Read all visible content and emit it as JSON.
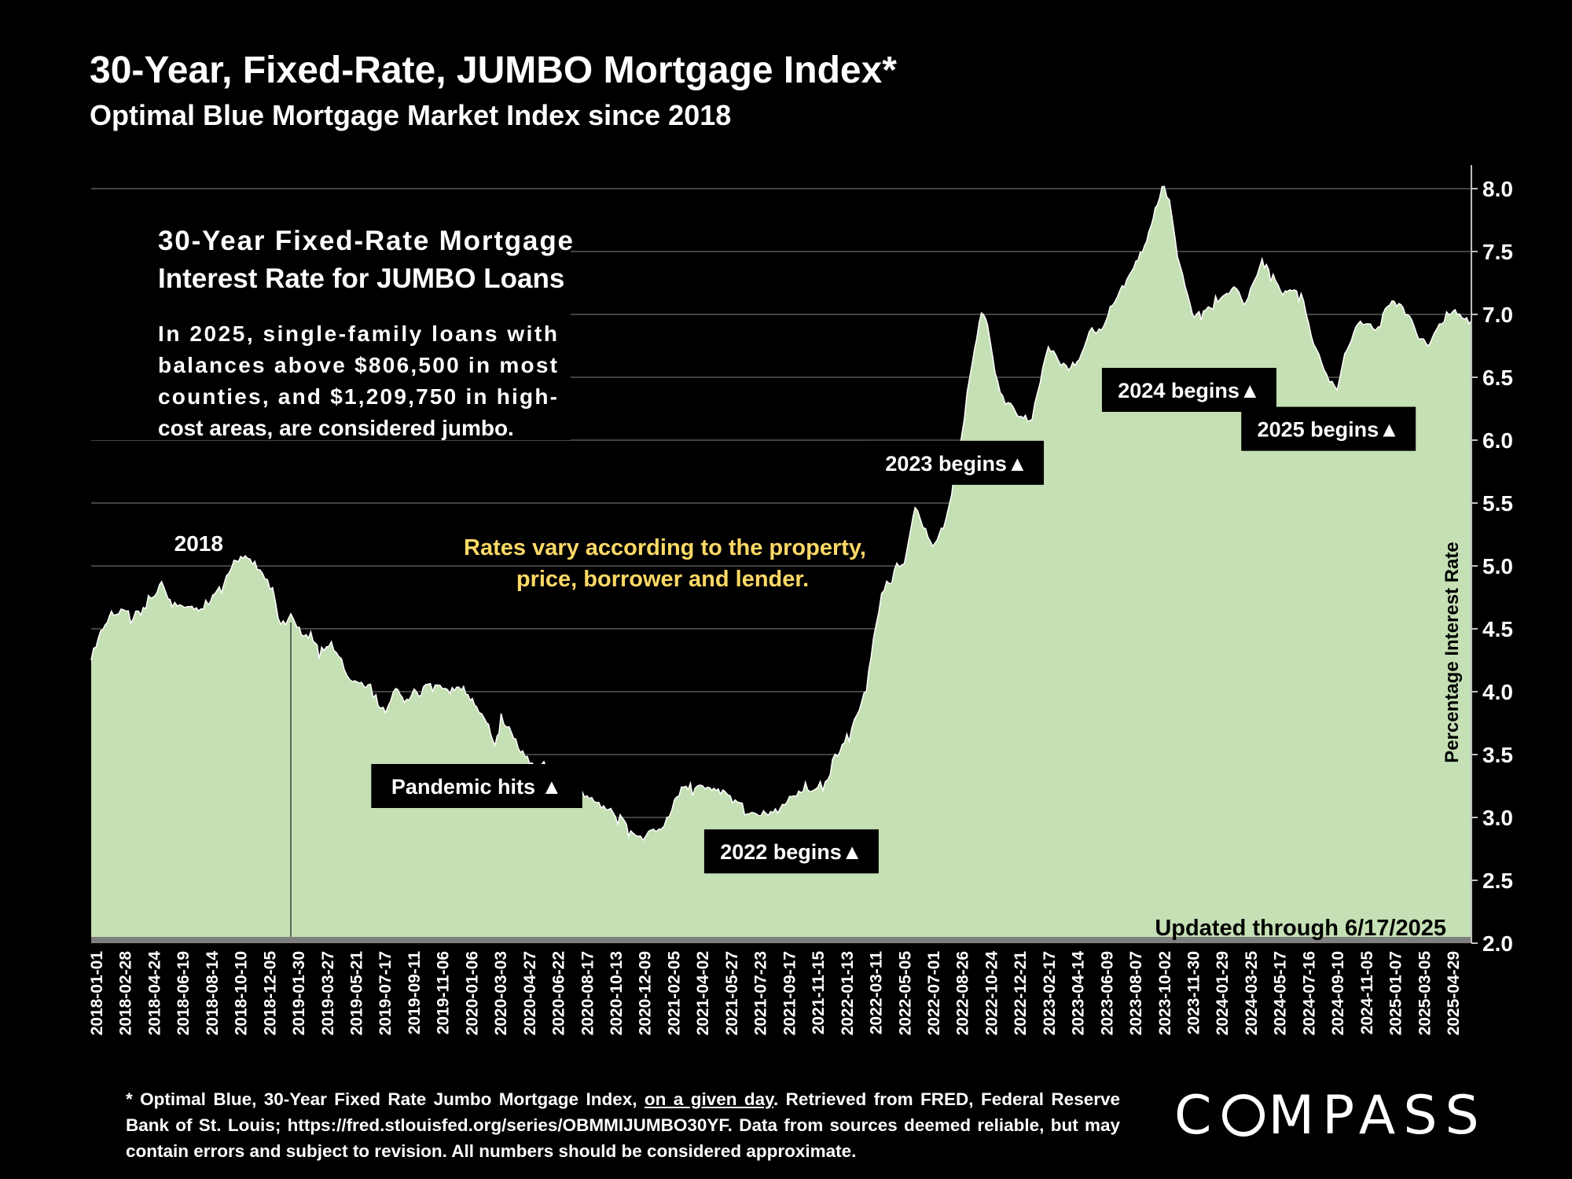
{
  "header": {
    "title": "30-Year, Fixed-Rate, JUMBO Mortgage Index*",
    "subtitle": "Optimal Blue Mortgage Market Index since 2018"
  },
  "info_box": {
    "heading_line1": "30-Year Fixed-Rate Mortgage",
    "heading_line2": "Interest Rate for JUMBO Loans",
    "body_lines": [
      "In 2025, single-family loans with",
      "balances above $806,500 in most",
      "counties, and $1,209,750 in high-",
      "cost areas, are considered jumbo."
    ]
  },
  "note": {
    "line1": "Rates vary according to the property,",
    "line2": "price, borrower and lender."
  },
  "updated": "Updated through 6/17/2025",
  "footnote": {
    "part1": "* Optimal Blue, 30-Year Fixed Rate Jumbo Mortgage Index, ",
    "underlined": "on a given day",
    "part2": ". Retrieved from FRED, Federal Reserve Bank of St. Louis; https://fred.stlouisfed.org/series/OBMMIJUMBO30YF. Data from sources deemed reliable, but may contain errors and subject to revision. All numbers should be considered approximate."
  },
  "logo": {
    "before": "C",
    "after": "MPASS"
  },
  "colors": {
    "background": "#000000",
    "area_fill": "#c5e0b4",
    "note_text": "#ffd966",
    "gridline": "#595959"
  },
  "chart_data": {
    "type": "area",
    "ylabel": "Percentage Interest Rate",
    "ylim": [
      2.0,
      8.2
    ],
    "y_ticks": [
      "2.0",
      "2.5",
      "3.0",
      "3.5",
      "4.0",
      "4.5",
      "5.0",
      "5.5",
      "6.0",
      "6.5",
      "7.0",
      "7.5",
      "8.0"
    ],
    "x_start": "2018-01-01",
    "x_end": "2025-06-17",
    "x_tick_labels": [
      "2018-01-01",
      "2018-02-28",
      "2018-04-24",
      "2018-06-19",
      "2018-08-14",
      "2018-10-10",
      "2018-12-05",
      "2019-01-30",
      "2019-03-27",
      "2019-05-21",
      "2019-07-17",
      "2019-09-11",
      "2019-11-06",
      "2020-01-06",
      "2020-03-03",
      "2020-04-27",
      "2020-06-22",
      "2020-08-17",
      "2020-10-13",
      "2020-12-09",
      "2021-02-05",
      "2021-04-02",
      "2021-05-27",
      "2021-07-23",
      "2021-09-17",
      "2021-11-15",
      "2022-01-13",
      "2022-03-11",
      "2022-05-05",
      "2022-07-01",
      "2022-08-26",
      "2022-10-24",
      "2022-12-21",
      "2023-02-17",
      "2023-04-14",
      "2023-06-09",
      "2023-08-07",
      "2023-10-02",
      "2023-11-30",
      "2024-01-29",
      "2024-03-25",
      "2024-05-17",
      "2024-07-16",
      "2024-09-10",
      "2024-11-05",
      "2025-01-07",
      "2025-03-05",
      "2025-04-29"
    ],
    "series": [
      {
        "points": [
          [
            "2018-01-01",
            4.25
          ],
          [
            "2018-01-20",
            4.45
          ],
          [
            "2018-02-10",
            4.6
          ],
          [
            "2018-03-01",
            4.62
          ],
          [
            "2018-03-25",
            4.58
          ],
          [
            "2018-04-24",
            4.72
          ],
          [
            "2018-05-20",
            4.88
          ],
          [
            "2018-06-10",
            4.72
          ],
          [
            "2018-07-10",
            4.7
          ],
          [
            "2018-08-01",
            4.68
          ],
          [
            "2018-08-20",
            4.72
          ],
          [
            "2018-09-15",
            4.8
          ],
          [
            "2018-10-10",
            5.0
          ],
          [
            "2018-11-01",
            5.05
          ],
          [
            "2018-11-20",
            5.0
          ],
          [
            "2018-12-10",
            4.88
          ],
          [
            "2018-12-25",
            4.78
          ],
          [
            "2019-01-05",
            4.6
          ],
          [
            "2019-01-20",
            4.55
          ],
          [
            "2019-01-30",
            4.62
          ],
          [
            "2019-02-20",
            4.5
          ],
          [
            "2019-03-15",
            4.45
          ],
          [
            "2019-03-27",
            4.3
          ],
          [
            "2019-04-20",
            4.35
          ],
          [
            "2019-05-10",
            4.22
          ],
          [
            "2019-05-21",
            4.1
          ],
          [
            "2019-06-10",
            4.05
          ],
          [
            "2019-07-01",
            4.05
          ],
          [
            "2019-07-17",
            3.95
          ],
          [
            "2019-08-05",
            3.88
          ],
          [
            "2019-08-25",
            4.05
          ],
          [
            "2019-09-11",
            3.95
          ],
          [
            "2019-10-05",
            4.0
          ],
          [
            "2019-11-06",
            4.05
          ],
          [
            "2019-12-10",
            3.98
          ],
          [
            "2020-01-06",
            4.0
          ],
          [
            "2020-02-01",
            3.85
          ],
          [
            "2020-02-20",
            3.75
          ],
          [
            "2020-03-08",
            3.55
          ],
          [
            "2020-03-20",
            3.8
          ],
          [
            "2020-04-05",
            3.75
          ],
          [
            "2020-04-27",
            3.55
          ],
          [
            "2020-05-20",
            3.45
          ],
          [
            "2020-06-22",
            3.38
          ],
          [
            "2020-07-20",
            3.22
          ],
          [
            "2020-08-17",
            3.18
          ],
          [
            "2020-09-15",
            3.12
          ],
          [
            "2020-10-13",
            3.05
          ],
          [
            "2020-11-10",
            2.98
          ],
          [
            "2020-12-01",
            2.88
          ],
          [
            "2020-12-20",
            2.85
          ],
          [
            "2021-01-05",
            2.9
          ],
          [
            "2021-01-25",
            2.92
          ],
          [
            "2021-02-05",
            2.95
          ],
          [
            "2021-02-25",
            3.15
          ],
          [
            "2021-03-20",
            3.25
          ],
          [
            "2021-04-02",
            3.22
          ],
          [
            "2021-05-01",
            3.2
          ],
          [
            "2021-05-27",
            3.18
          ],
          [
            "2021-06-25",
            3.12
          ],
          [
            "2021-07-23",
            3.02
          ],
          [
            "2021-08-20",
            3.05
          ],
          [
            "2021-09-17",
            3.08
          ],
          [
            "2021-10-15",
            3.2
          ],
          [
            "2021-11-15",
            3.25
          ],
          [
            "2021-12-15",
            3.25
          ],
          [
            "2022-01-13",
            3.5
          ],
          [
            "2022-02-05",
            3.65
          ],
          [
            "2022-02-25",
            3.85
          ],
          [
            "2022-03-11",
            4.0
          ],
          [
            "2022-03-25",
            4.4
          ],
          [
            "2022-04-10",
            4.75
          ],
          [
            "2022-05-05",
            4.95
          ],
          [
            "2022-05-25",
            5.05
          ],
          [
            "2022-06-15",
            5.5
          ],
          [
            "2022-07-01",
            5.35
          ],
          [
            "2022-07-20",
            5.2
          ],
          [
            "2022-08-10",
            5.3
          ],
          [
            "2022-08-26",
            5.6
          ],
          [
            "2022-09-15",
            6.0
          ],
          [
            "2022-10-01",
            6.5
          ],
          [
            "2022-10-24",
            7.0
          ],
          [
            "2022-11-05",
            6.9
          ],
          [
            "2022-11-20",
            6.5
          ],
          [
            "2022-12-05",
            6.35
          ],
          [
            "2022-12-21",
            6.3
          ],
          [
            "2023-01-10",
            6.2
          ],
          [
            "2023-02-01",
            6.2
          ],
          [
            "2023-02-17",
            6.5
          ],
          [
            "2023-03-05",
            6.75
          ],
          [
            "2023-03-25",
            6.6
          ],
          [
            "2023-04-14",
            6.55
          ],
          [
            "2023-05-05",
            6.6
          ],
          [
            "2023-05-25",
            6.85
          ],
          [
            "2023-06-09",
            6.85
          ],
          [
            "2023-07-05",
            7.05
          ],
          [
            "2023-08-07",
            7.3
          ],
          [
            "2023-08-25",
            7.45
          ],
          [
            "2023-09-15",
            7.6
          ],
          [
            "2023-10-02",
            7.85
          ],
          [
            "2023-10-20",
            8.05
          ],
          [
            "2023-10-30",
            7.9
          ],
          [
            "2023-11-15",
            7.45
          ],
          [
            "2023-11-30",
            7.2
          ],
          [
            "2023-12-15",
            6.95
          ],
          [
            "2024-01-05",
            7.0
          ],
          [
            "2024-01-29",
            7.1
          ],
          [
            "2024-02-20",
            7.2
          ],
          [
            "2024-03-10",
            7.25
          ],
          [
            "2024-03-25",
            7.1
          ],
          [
            "2024-04-15",
            7.3
          ],
          [
            "2024-04-30",
            7.45
          ],
          [
            "2024-05-17",
            7.3
          ],
          [
            "2024-06-10",
            7.15
          ],
          [
            "2024-07-16",
            7.15
          ],
          [
            "2024-08-05",
            6.8
          ],
          [
            "2024-08-25",
            6.6
          ],
          [
            "2024-09-10",
            6.45
          ],
          [
            "2024-09-25",
            6.42
          ],
          [
            "2024-10-10",
            6.7
          ],
          [
            "2024-11-05",
            6.95
          ],
          [
            "2024-11-25",
            6.95
          ],
          [
            "2024-12-15",
            6.9
          ],
          [
            "2025-01-07",
            7.1
          ],
          [
            "2025-01-25",
            7.05
          ],
          [
            "2025-02-15",
            6.95
          ],
          [
            "2025-03-05",
            6.8
          ],
          [
            "2025-03-25",
            6.75
          ],
          [
            "2025-04-10",
            6.85
          ],
          [
            "2025-04-29",
            7.0
          ],
          [
            "2025-05-20",
            7.05
          ],
          [
            "2025-06-17",
            6.95
          ]
        ]
      }
    ],
    "annotations": [
      {
        "text": "2018",
        "date": "2018-10-10",
        "y": 5.18,
        "style": "plain"
      },
      {
        "text": "Pandemic hits ▲",
        "date": "2020-02-01",
        "y": 3.25,
        "style": "box"
      },
      {
        "text": "2022 begins▲",
        "date": "2021-10-14",
        "y": 2.73,
        "style": "box"
      },
      {
        "text": "2023 begins▲",
        "date": "2022-09-05",
        "y": 5.82,
        "style": "box"
      },
      {
        "text": "2024 begins▲",
        "date": "2023-12-08",
        "y": 6.4,
        "style": "box"
      },
      {
        "text": "2025 begins▲",
        "date": "2024-09-08",
        "y": 6.09,
        "style": "box"
      }
    ],
    "marker_line_date": "2019-01-30"
  }
}
